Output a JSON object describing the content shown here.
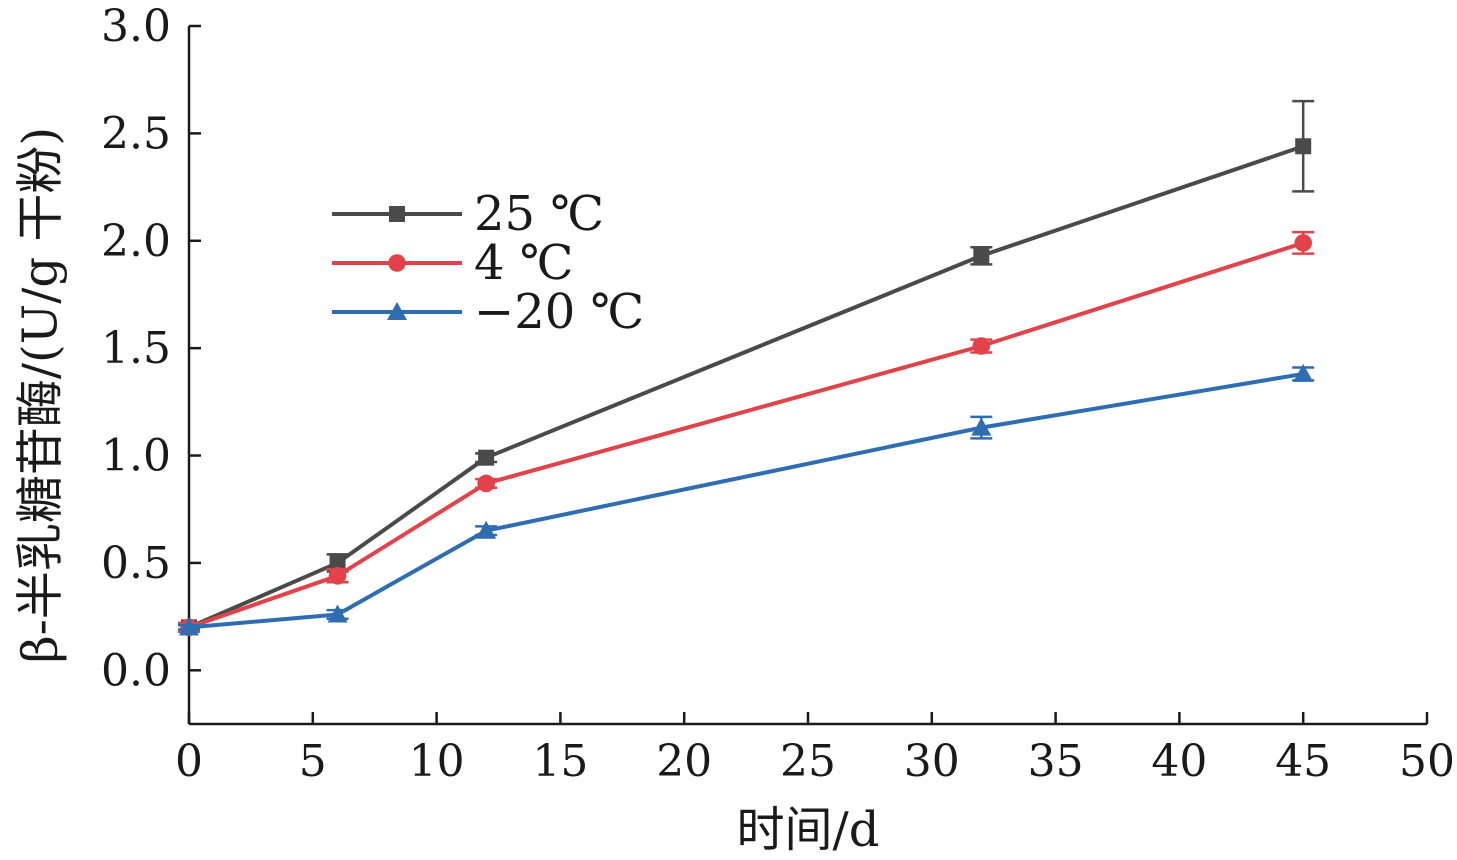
{
  "chart_data": {
    "type": "line",
    "xlabel": "时间/d",
    "ylabel": "β-半乳糖苷酶/(U/g 干粉)",
    "xlim": [
      0,
      50
    ],
    "ylim": [
      -0.25,
      3.0
    ],
    "xticks": [
      "0",
      "5",
      "10",
      "15",
      "20",
      "25",
      "30",
      "35",
      "40",
      "45",
      "50"
    ],
    "yticks": [
      "0.0",
      "0.5",
      "1.0",
      "1.5",
      "2.0",
      "2.5",
      "3.0"
    ],
    "x": [
      0,
      6,
      12,
      32,
      45
    ],
    "grid": false,
    "legend_position": "upper-left",
    "series": [
      {
        "name": "25 ℃",
        "marker": "square",
        "color": "#4a4a4a",
        "values": [
          0.2,
          0.5,
          0.99,
          1.93,
          2.44
        ],
        "errors": [
          0.02,
          0.04,
          0.02,
          0.04,
          0.21
        ]
      },
      {
        "name": "4 ℃",
        "marker": "circle",
        "color": "#e2434a",
        "values": [
          0.2,
          0.44,
          0.87,
          1.51,
          1.99
        ],
        "errors": [
          0.02,
          0.03,
          0.02,
          0.03,
          0.05
        ]
      },
      {
        "name": "−20 ℃",
        "marker": "triangle",
        "color": "#2f6db2",
        "values": [
          0.2,
          0.26,
          0.65,
          1.13,
          1.38
        ],
        "errors": [
          0.01,
          0.02,
          0.02,
          0.05,
          0.03
        ]
      }
    ]
  }
}
